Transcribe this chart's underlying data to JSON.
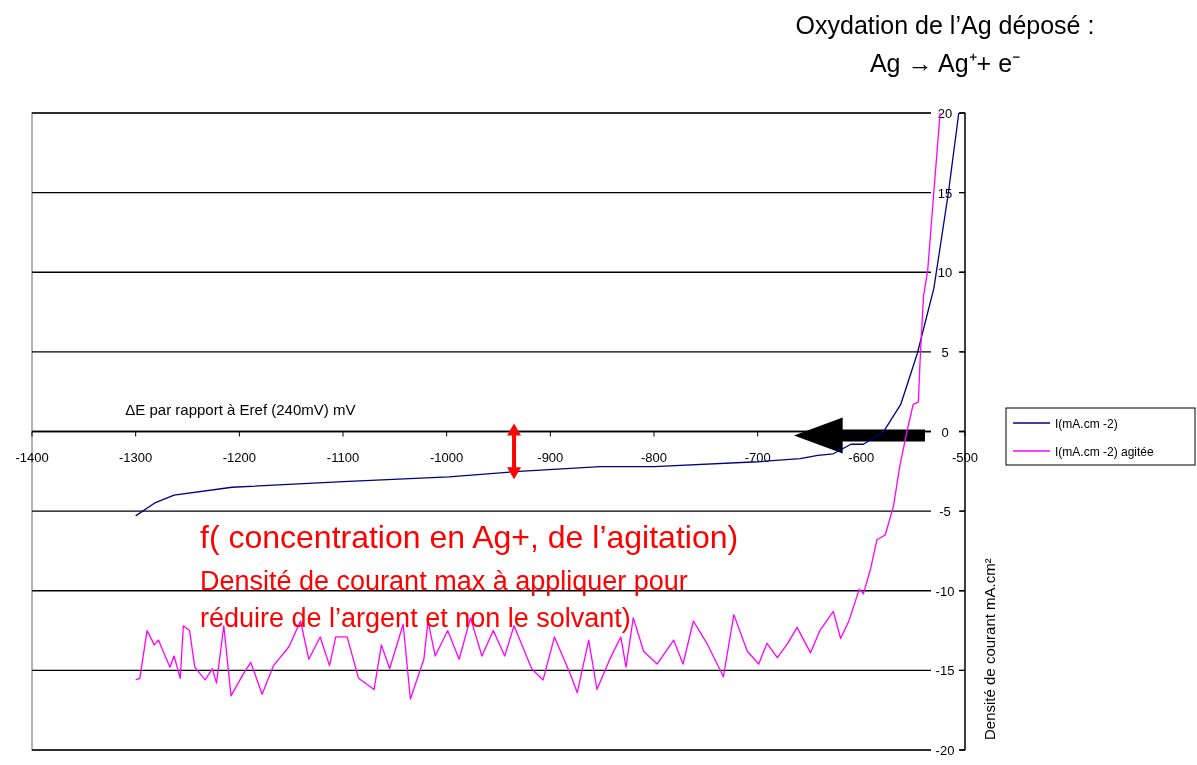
{
  "chart_data": {
    "type": "line",
    "title": "Oxydation de l’Ag déposé :",
    "subtitle": "Ag → Ag⁺+ e⁻",
    "xlabel": "ΔE par rapport à Eref (240mV) mV",
    "ylabel": "Densité de courant mA.cm²",
    "xlim": [
      -1400,
      -500
    ],
    "xticks": [
      -1400,
      -1300,
      -1200,
      -1100,
      -1000,
      -900,
      -800,
      -700,
      -600,
      -500
    ],
    "ylim": [
      -20,
      20
    ],
    "yticks": [
      -20,
      -15,
      -10,
      -5,
      0,
      5,
      10,
      15,
      20
    ],
    "grid": "y",
    "legend": "right",
    "marker": "none",
    "line_style": "solid",
    "annotations": [
      "f( concentration en Ag+, de l’agitation)",
      "Densité de courant max à appliquer pour réduire de l’argent et non le solvant)"
    ],
    "series": [
      {
        "name": "I(mA.cm -2)",
        "color": "#000080",
        "x": [
          -1300,
          -1282,
          -1263,
          -1207,
          -1100,
          -998,
          -930,
          -852,
          -800,
          -700,
          -659,
          -642,
          -627,
          -610,
          -598,
          -579,
          -562,
          -546,
          -530,
          -516,
          -506
        ],
        "values": [
          -5.3,
          -4.5,
          -4.0,
          -3.5,
          -3.15,
          -2.85,
          -2.5,
          -2.2,
          -2.2,
          -1.9,
          -1.7,
          -1.5,
          -1.4,
          -0.8,
          -0.8,
          -0.05,
          1.7,
          4.9,
          9,
          15,
          20
        ]
      },
      {
        "name": "I(mA.cm -2) agitée",
        "color": "#ff00ff",
        "x": [
          -1300,
          -1296,
          -1289,
          -1282,
          -1278,
          -1267,
          -1263,
          -1257,
          -1254,
          -1248,
          -1243,
          -1233,
          -1226,
          -1222,
          -1215,
          -1208,
          -1196,
          -1189,
          -1178,
          -1167,
          -1152,
          -1141,
          -1133,
          -1122,
          -1113,
          -1107,
          -1096,
          -1085,
          -1070,
          -1063,
          -1055,
          -1042,
          -1035,
          -1022,
          -1018,
          -1011,
          -999,
          -988,
          -977,
          -966,
          -955,
          -944,
          -935,
          -918,
          -907,
          -896,
          -881,
          -874,
          -863,
          -855,
          -842,
          -832,
          -827,
          -820,
          -810,
          -797,
          -781,
          -772,
          -762,
          -749,
          -733,
          -723,
          -710,
          -699,
          -691,
          -681,
          -671,
          -662,
          -649,
          -640,
          -627,
          -620,
          -612,
          -607,
          -602,
          -598,
          -591,
          -585,
          -577,
          -569,
          -563,
          -556,
          -550,
          -545,
          -543,
          -540,
          -536,
          -530,
          -524
        ],
        "values": [
          -15.6,
          -15.5,
          -12.5,
          -13.4,
          -13.1,
          -14.8,
          -14.1,
          -15.5,
          -12.2,
          -12.5,
          -14.8,
          -15.6,
          -14.9,
          -15.8,
          -12.2,
          -16.6,
          -15.2,
          -14.5,
          -16.5,
          -14.7,
          -13.5,
          -11.9,
          -14.3,
          -12.9,
          -14.7,
          -12.9,
          -12.9,
          -15.5,
          -16.2,
          -13.4,
          -14.9,
          -12.1,
          -16.8,
          -14.3,
          -11.9,
          -14.1,
          -12.5,
          -14.3,
          -11.7,
          -14.1,
          -12.5,
          -14.1,
          -12.2,
          -14.9,
          -15.6,
          -12.9,
          -15.2,
          -16.4,
          -13.1,
          -16.2,
          -14.2,
          -12.9,
          -14.8,
          -11.7,
          -13.8,
          -14.6,
          -13.1,
          -14.6,
          -11.9,
          -13.3,
          -15.4,
          -11.5,
          -13.8,
          -14.6,
          -13.3,
          -14.2,
          -13.3,
          -12.3,
          -13.9,
          -12.5,
          -11.3,
          -13.0,
          -11.9,
          -10.9,
          -9.9,
          -10.2,
          -8.6,
          -6.8,
          -6.5,
          -4.7,
          -2.2,
          0,
          1.7,
          1.85,
          4.9,
          8.5,
          10.1,
          15.1,
          20
        ]
      }
    ]
  }
}
